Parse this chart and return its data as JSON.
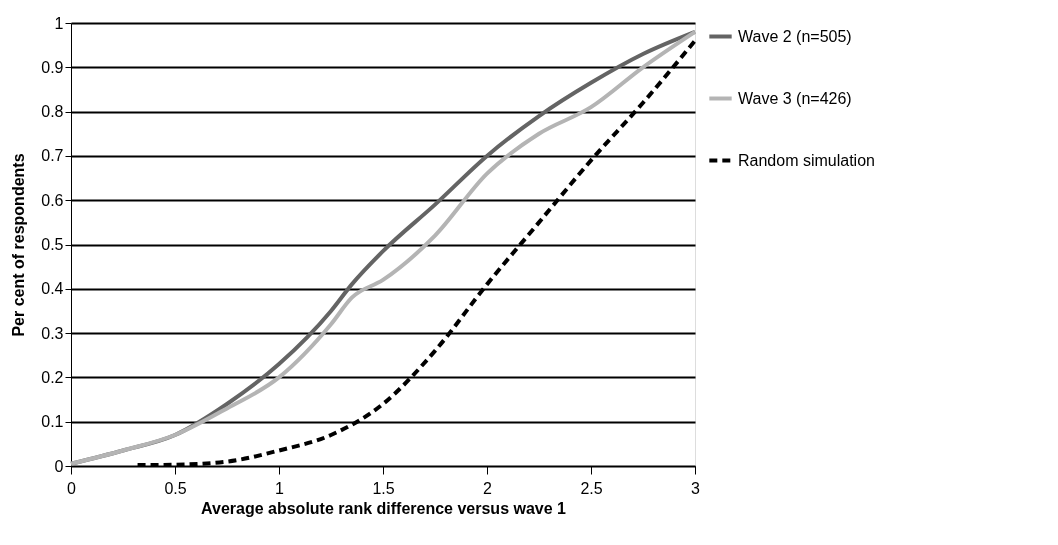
{
  "chart_data": {
    "type": "line",
    "xlabel": "Average absolute rank difference versus wave 1",
    "ylabel": "Per cent of respondents",
    "xlim": [
      0,
      3
    ],
    "xticks": [
      0,
      0.5,
      1,
      1.5,
      2,
      2.5,
      3
    ],
    "ylim": [
      0,
      1
    ],
    "yticks": [
      0,
      0.1,
      0.2,
      0.3,
      0.4,
      0.5,
      0.6,
      0.7,
      0.8,
      0.9,
      1
    ],
    "grid": "y",
    "legend": "right",
    "marker": "none",
    "series": [
      {
        "name": "Wave 2 (n=505)",
        "color": "#646464",
        "line_style": "solid",
        "x": [
          0,
          0.25,
          0.5,
          0.75,
          1,
          1.25,
          1.35,
          1.5,
          1.75,
          2,
          2.25,
          2.5,
          2.75,
          3
        ],
        "values": [
          0.005,
          0.035,
          0.07,
          0.14,
          0.23,
          0.35,
          0.41,
          0.485,
          0.59,
          0.7,
          0.79,
          0.865,
          0.93,
          0.98
        ]
      },
      {
        "name": "Wave 3 (n=426)",
        "color": "#b4b4b4",
        "line_style": "solid",
        "x": [
          0,
          0.25,
          0.5,
          0.75,
          1,
          1.25,
          1.35,
          1.5,
          1.75,
          2,
          2.25,
          2.5,
          2.75,
          3
        ],
        "values": [
          0.005,
          0.035,
          0.07,
          0.13,
          0.2,
          0.32,
          0.38,
          0.42,
          0.52,
          0.66,
          0.75,
          0.81,
          0.9,
          0.98
        ]
      },
      {
        "name": "Random simulation",
        "color": "#000000",
        "line_style": "dashed",
        "x": [
          0.32,
          0.5,
          0.75,
          1,
          1.25,
          1.5,
          1.75,
          2,
          2.25,
          2.5,
          2.75,
          3
        ],
        "values": [
          0.002,
          0.003,
          0.01,
          0.035,
          0.07,
          0.14,
          0.26,
          0.41,
          0.55,
          0.69,
          0.82,
          0.96
        ]
      }
    ]
  }
}
